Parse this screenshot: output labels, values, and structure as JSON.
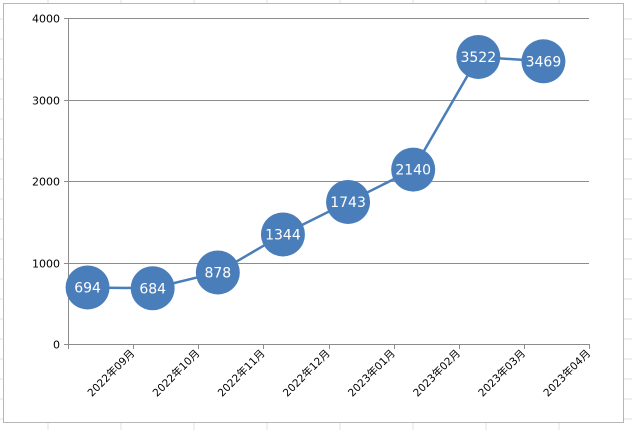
{
  "chart_data": {
    "type": "line",
    "categories": [
      "2022年09月",
      "2022年10月",
      "2022年11月",
      "2022年12月",
      "2023年01月",
      "2023年02月",
      "2023年03月",
      "2023年04月"
    ],
    "values": [
      694,
      684,
      878,
      1344,
      1743,
      2140,
      3522,
      3469
    ],
    "ylim": [
      0,
      4000
    ],
    "yticks": [
      0,
      1000,
      2000,
      3000,
      4000
    ],
    "grid": true,
    "legend": "none",
    "data_labels": true,
    "colors": {
      "series": "#4a7ebb",
      "marker": "#4a7ebb",
      "gridline": "#8c8c8c",
      "label_text": "#ffffff"
    }
  }
}
